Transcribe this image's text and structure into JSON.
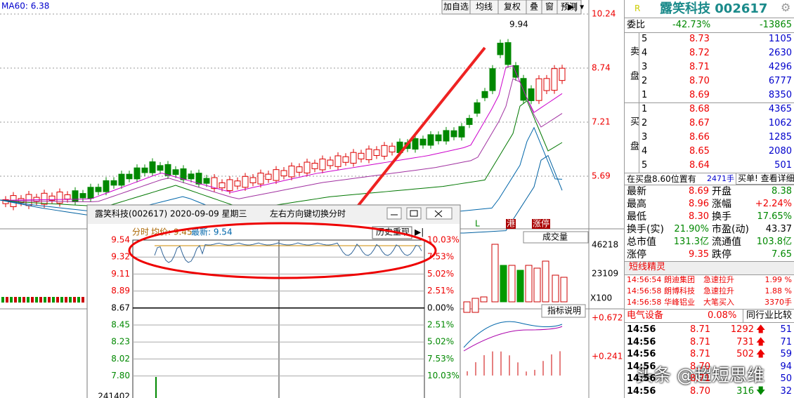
{
  "main_chart": {
    "ma60": "MA60: 6.38",
    "toolbar": [
      "加自选",
      "均线",
      "复权",
      "叠",
      "窗",
      "预测"
    ],
    "price_axis": [
      "10.24",
      "8.74",
      "7.21",
      "5.69"
    ],
    "high_label": "9.94"
  },
  "stock_header": {
    "flag": "R",
    "name": "露笑科技 002617"
  },
  "order_ratio": {
    "label": "委比",
    "ratio": "-42.73%",
    "diff": "-13865"
  },
  "sell": {
    "label": "卖盘",
    "levels": [
      [
        "5",
        "8.73",
        "1105"
      ],
      [
        "4",
        "8.72",
        "2630"
      ],
      [
        "3",
        "8.71",
        "4296"
      ],
      [
        "2",
        "8.70",
        "6777"
      ],
      [
        "1",
        "8.69",
        "8350"
      ]
    ]
  },
  "buy": {
    "label": "买盘",
    "levels": [
      [
        "1",
        "8.68",
        "4365"
      ],
      [
        "2",
        "8.67",
        "1062"
      ],
      [
        "3",
        "8.66",
        "1285"
      ],
      [
        "4",
        "8.65",
        "2080"
      ],
      [
        "5",
        "8.64",
        "501"
      ]
    ]
  },
  "alert": {
    "text": "在买盘8.60位置有",
    "volume": "2471手",
    "link": "买单! 查看详细"
  },
  "stats": [
    [
      "最新",
      "8.69",
      "开盘",
      "8.38"
    ],
    [
      "最高",
      "8.96",
      "涨幅",
      "+2.24%"
    ],
    [
      "最低",
      "8.30",
      "换手",
      "17.65%"
    ],
    [
      "换手(实)",
      "21.90%",
      "市盈(动)",
      "43.37"
    ],
    [
      "总市值",
      "131.3亿",
      "流通值",
      "103.8亿"
    ],
    [
      "涨停",
      "9.35",
      "跌停",
      "7.65"
    ]
  ],
  "short_term": {
    "title": "短线精灵",
    "items": [
      [
        "14:56:54",
        "朗迪集团",
        "急速拉升",
        "1.99 %"
      ],
      [
        "14:56:58",
        "朗博科技",
        "急速拉升",
        "1.88 %"
      ],
      [
        "14:56:58",
        "华峰铝业",
        "大笔买入",
        "3370手"
      ]
    ]
  },
  "industry": {
    "name": "电气设备",
    "change": "0.08%",
    "compare": "同行业比较"
  },
  "trades": [
    {
      "time": "14:56",
      "price": "8.71",
      "vol": "1292",
      "dir": "up",
      "count": "51"
    },
    {
      "time": "14:56",
      "price": "8.71",
      "vol": "731",
      "dir": "up",
      "count": "71"
    },
    {
      "time": "14:56",
      "price": "8.71",
      "vol": "502",
      "dir": "up",
      "count": "59"
    },
    {
      "time": "14:56",
      "price": "8.70",
      "count": "94"
    },
    {
      "time": "14:56",
      "price": "8.71",
      "count": "50"
    },
    {
      "time": "14:56",
      "price": "8.70",
      "vol": "316",
      "dir": "down",
      "count": "32"
    }
  ],
  "volume_panel": {
    "selector": "成交量",
    "ticks": [
      "46218",
      "23109"
    ],
    "unit": "X100",
    "help": "指标说明",
    "macd_ticks": [
      "+0.672",
      "+0.241"
    ],
    "tags": [
      "L",
      "港",
      "涨停"
    ]
  },
  "popup": {
    "title": "露笑科技(002617) 2020-09-09 星期三",
    "hint": "左右方向键切换分时",
    "mode": "分时",
    "avg": "均价: 9.45",
    "last": "最新: 9.54",
    "replay": "历史重现",
    "price_ticks": [
      "9.54",
      "9.32",
      "9.11",
      "8.89",
      "8.67",
      "8.45",
      "8.23",
      "8.02",
      "7.80"
    ],
    "pct_ticks": [
      "10.03%",
      "7.53%",
      "5.02%",
      "2.51%",
      "0.00%",
      "2.51%",
      "5.02%",
      "7.53%",
      "10.03%"
    ],
    "volume_tick": "241402"
  },
  "watermark": "头条 @超短思维"
}
